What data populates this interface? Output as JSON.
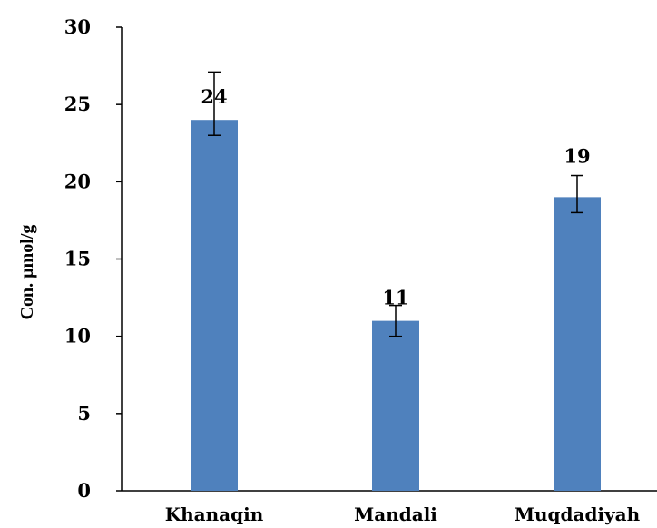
{
  "chart_data": {
    "type": "bar",
    "categories": [
      "Khanaqin",
      "Mandali",
      "Muqdadiyah"
    ],
    "values": [
      24,
      11,
      19
    ],
    "error": [
      [
        1,
        3.1
      ],
      [
        1,
        1
      ],
      [
        1,
        1.4
      ]
    ],
    "data_labels": [
      "24",
      "11",
      "19"
    ],
    "ylabel": "Con. µmol/g",
    "xlabel": "",
    "ylim": [
      0,
      30
    ],
    "yticks": [
      0,
      5,
      10,
      15,
      20,
      25,
      30
    ],
    "grid": false,
    "legend": "none",
    "bar_color": "#4f81bd"
  }
}
